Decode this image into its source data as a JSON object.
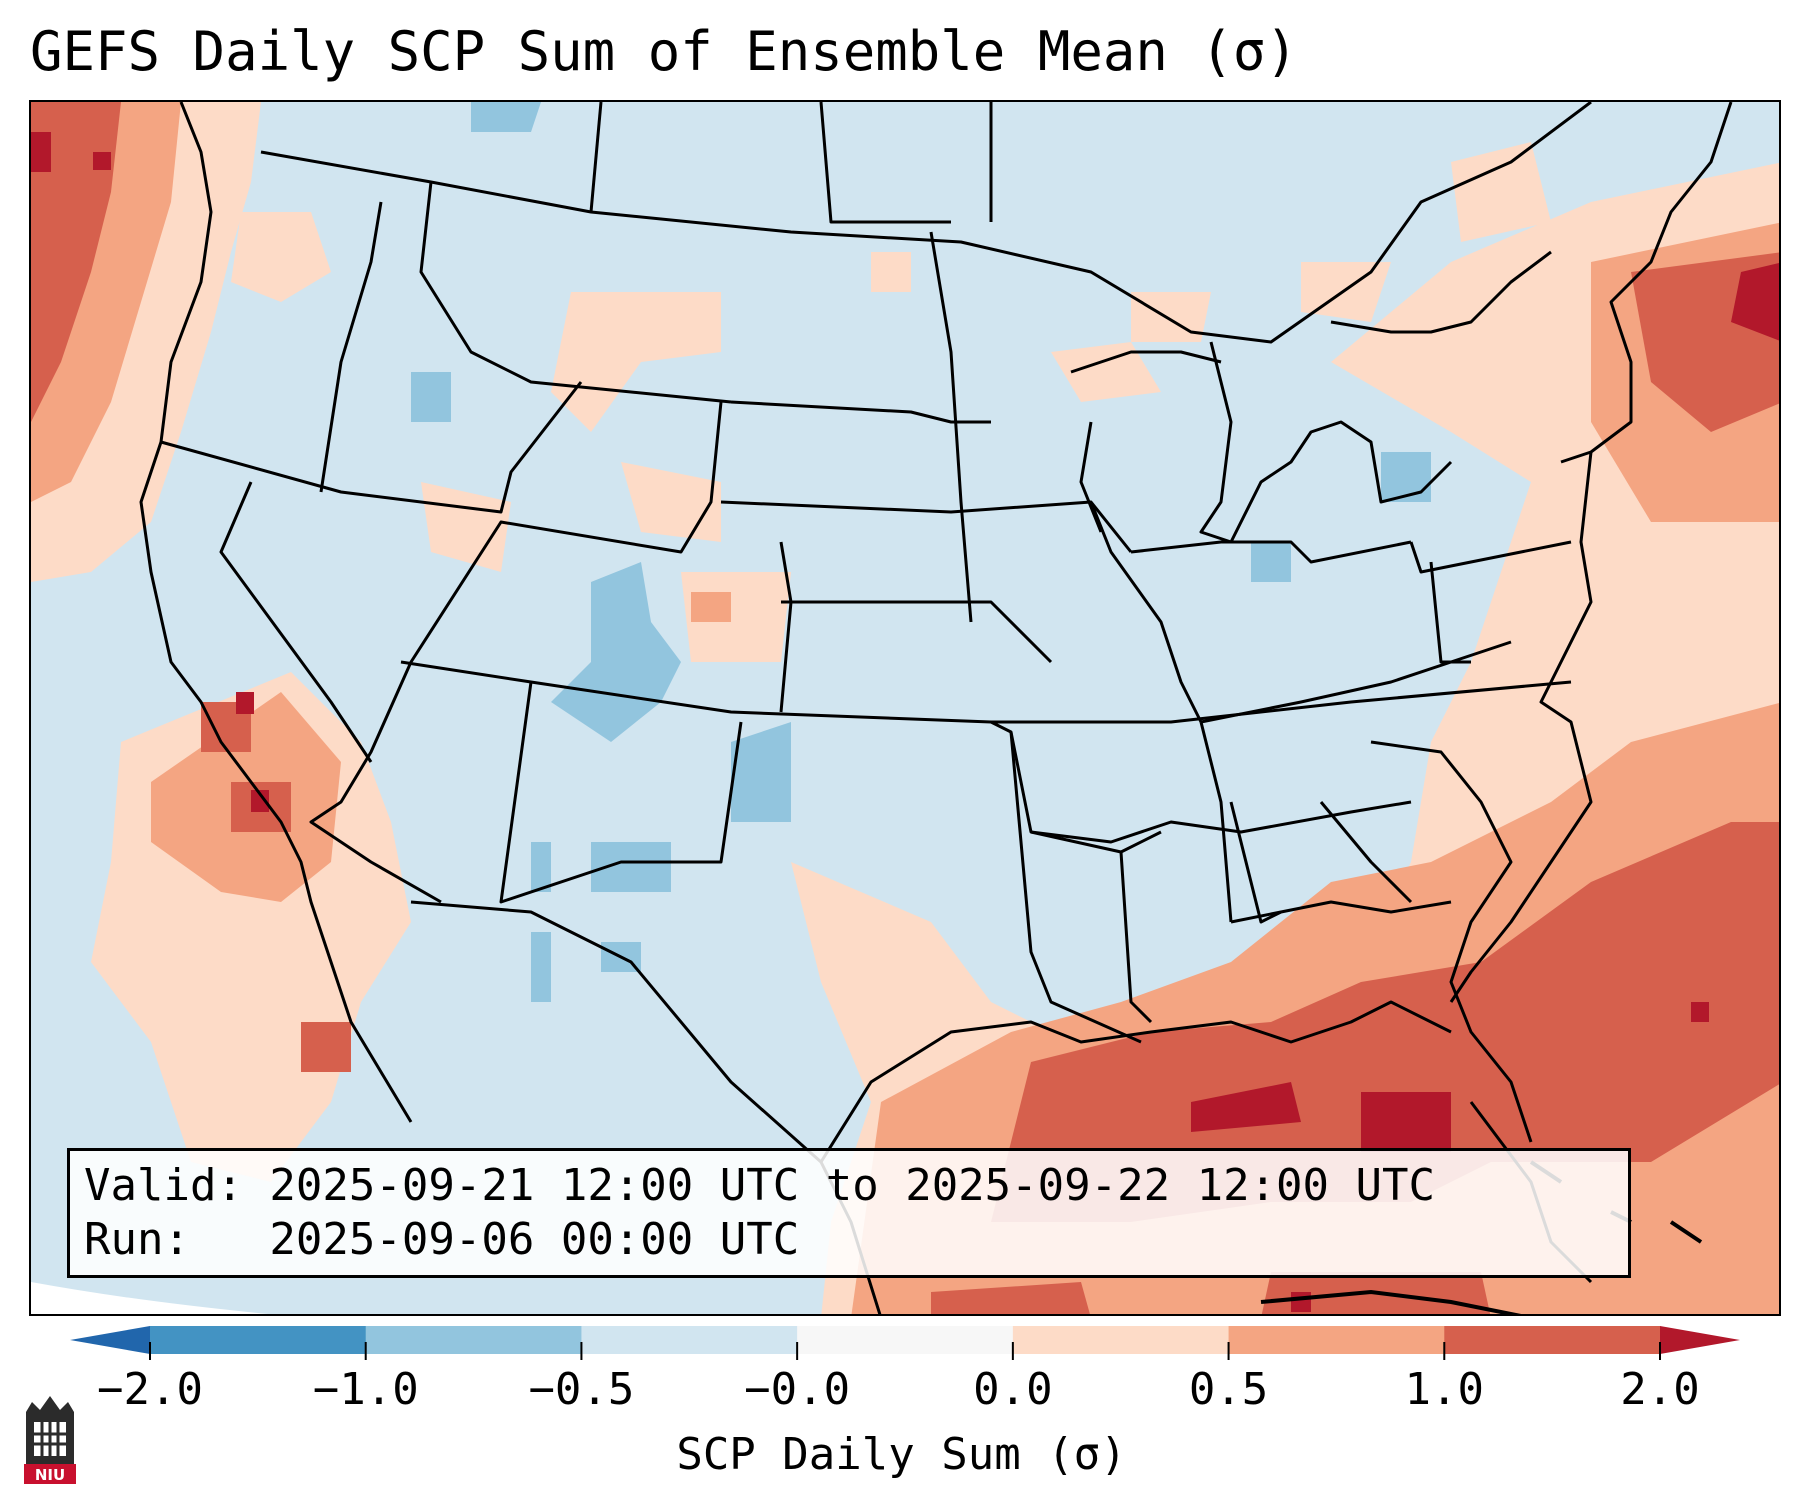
{
  "title": "GEFS Daily SCP Sum of Ensemble Mean (σ)",
  "info": {
    "valid_line": "Valid: 2025-09-21 12:00 UTC to 2025-09-22 12:00 UTC",
    "run_line": "Run:   2025-09-06 00:00 UTC"
  },
  "colorbar": {
    "label": "SCP Daily Sum (σ)",
    "ticks": [
      "−2.0",
      "−1.0",
      "−0.5",
      "−0.0",
      "0.0",
      "0.5",
      "1.0",
      "2.0"
    ],
    "segment_colors": [
      "#4393c3",
      "#92c5de",
      "#d1e5f0",
      "#fddbc7",
      "#f4a582",
      "#d6604d"
    ],
    "under_color": "#2166ac",
    "over_color": "#b2182b"
  },
  "map": {
    "region": "Continental United States",
    "palette": {
      "land_neutral": "#d1e5f0",
      "light_blue": "#92c5de",
      "light_red": "#fddbc7",
      "mid_red": "#f4a582",
      "red": "#d6604d",
      "dark_red": "#b2182b",
      "borders": "#000000"
    }
  },
  "logo": {
    "text": "NIU",
    "color": "#c8102e"
  }
}
